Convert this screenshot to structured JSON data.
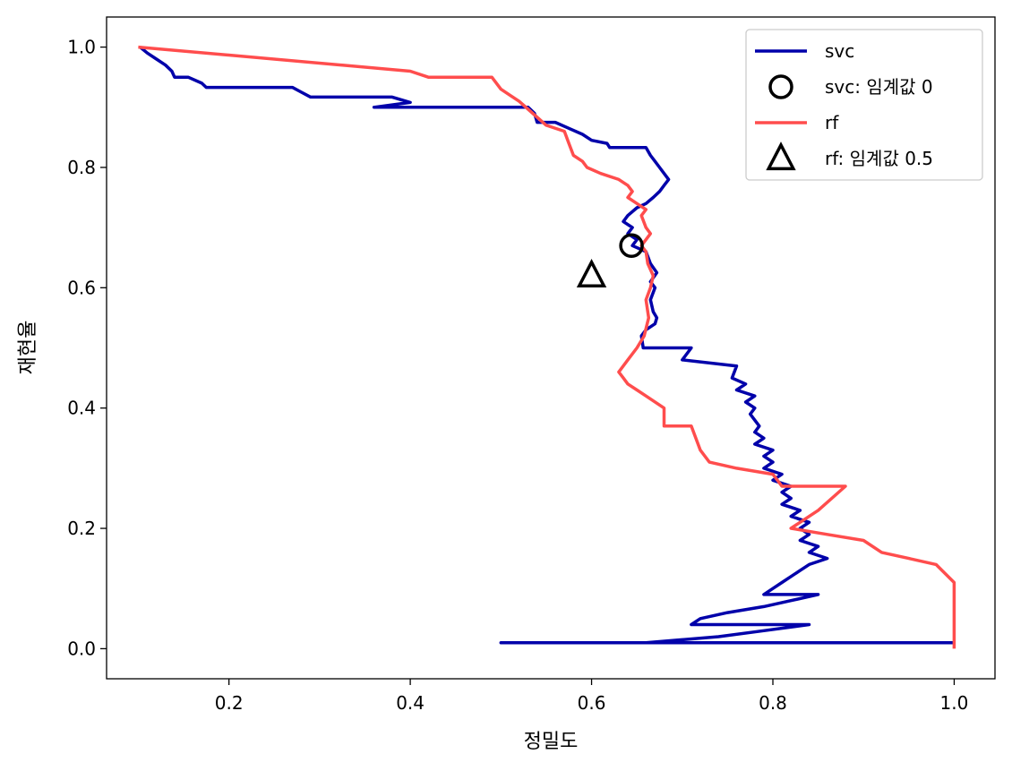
{
  "chart_data": {
    "type": "line",
    "xlabel": "정밀도",
    "ylabel": "재현율",
    "xlim": [
      0.065,
      1.045
    ],
    "ylim": [
      -0.05,
      1.05
    ],
    "xticks": [
      0.2,
      0.4,
      0.6,
      0.8,
      1.0
    ],
    "xtick_labels": [
      "0.2",
      "0.4",
      "0.6",
      "0.8",
      "1.0"
    ],
    "yticks": [
      0.0,
      0.2,
      0.4,
      0.6,
      0.8,
      1.0
    ],
    "ytick_labels": [
      "0.0",
      "0.2",
      "0.4",
      "0.6",
      "0.8",
      "1.0"
    ],
    "grid": false,
    "legend_position": "top-right",
    "series": [
      {
        "name": "svc",
        "kind": "line",
        "color": "#0000aa",
        "points": [
          [
            0.102,
            1.0
          ],
          [
            0.11,
            0.99
          ],
          [
            0.12,
            0.98
          ],
          [
            0.13,
            0.97
          ],
          [
            0.137,
            0.96
          ],
          [
            0.14,
            0.95
          ],
          [
            0.155,
            0.95
          ],
          [
            0.17,
            0.94
          ],
          [
            0.175,
            0.933
          ],
          [
            0.27,
            0.933
          ],
          [
            0.28,
            0.925
          ],
          [
            0.29,
            0.917
          ],
          [
            0.38,
            0.917
          ],
          [
            0.4,
            0.908
          ],
          [
            0.36,
            0.9
          ],
          [
            0.53,
            0.9
          ],
          [
            0.537,
            0.89
          ],
          [
            0.54,
            0.875
          ],
          [
            0.56,
            0.875
          ],
          [
            0.575,
            0.865
          ],
          [
            0.59,
            0.855
          ],
          [
            0.6,
            0.845
          ],
          [
            0.617,
            0.84
          ],
          [
            0.62,
            0.833
          ],
          [
            0.66,
            0.833
          ],
          [
            0.665,
            0.82
          ],
          [
            0.67,
            0.81
          ],
          [
            0.675,
            0.8
          ],
          [
            0.68,
            0.79
          ],
          [
            0.685,
            0.78
          ],
          [
            0.68,
            0.77
          ],
          [
            0.675,
            0.76
          ],
          [
            0.668,
            0.75
          ],
          [
            0.66,
            0.74
          ],
          [
            0.65,
            0.733
          ],
          [
            0.64,
            0.72
          ],
          [
            0.635,
            0.71
          ],
          [
            0.645,
            0.7
          ],
          [
            0.64,
            0.69
          ],
          [
            0.65,
            0.68
          ],
          [
            0.645,
            0.67
          ],
          [
            0.66,
            0.66
          ],
          [
            0.665,
            0.64
          ],
          [
            0.672,
            0.625
          ],
          [
            0.665,
            0.61
          ],
          [
            0.67,
            0.6
          ],
          [
            0.665,
            0.58
          ],
          [
            0.668,
            0.56
          ],
          [
            0.672,
            0.55
          ],
          [
            0.67,
            0.54
          ],
          [
            0.66,
            0.53
          ],
          [
            0.655,
            0.52
          ],
          [
            0.657,
            0.5
          ],
          [
            0.71,
            0.5
          ],
          [
            0.7,
            0.48
          ],
          [
            0.76,
            0.47
          ],
          [
            0.755,
            0.45
          ],
          [
            0.77,
            0.44
          ],
          [
            0.76,
            0.43
          ],
          [
            0.78,
            0.42
          ],
          [
            0.77,
            0.41
          ],
          [
            0.78,
            0.4
          ],
          [
            0.775,
            0.39
          ],
          [
            0.785,
            0.37
          ],
          [
            0.78,
            0.36
          ],
          [
            0.79,
            0.35
          ],
          [
            0.78,
            0.34
          ],
          [
            0.8,
            0.33
          ],
          [
            0.79,
            0.32
          ],
          [
            0.8,
            0.31
          ],
          [
            0.79,
            0.3
          ],
          [
            0.81,
            0.29
          ],
          [
            0.8,
            0.28
          ],
          [
            0.82,
            0.27
          ],
          [
            0.81,
            0.26
          ],
          [
            0.82,
            0.25
          ],
          [
            0.81,
            0.24
          ],
          [
            0.83,
            0.23
          ],
          [
            0.82,
            0.22
          ],
          [
            0.84,
            0.21
          ],
          [
            0.83,
            0.2
          ],
          [
            0.84,
            0.19
          ],
          [
            0.83,
            0.18
          ],
          [
            0.85,
            0.17
          ],
          [
            0.84,
            0.16
          ],
          [
            0.86,
            0.15
          ],
          [
            0.84,
            0.14
          ],
          [
            0.83,
            0.13
          ],
          [
            0.82,
            0.12
          ],
          [
            0.81,
            0.11
          ],
          [
            0.8,
            0.1
          ],
          [
            0.79,
            0.09
          ],
          [
            0.85,
            0.09
          ],
          [
            0.82,
            0.08
          ],
          [
            0.79,
            0.07
          ],
          [
            0.75,
            0.06
          ],
          [
            0.72,
            0.05
          ],
          [
            0.71,
            0.04
          ],
          [
            0.84,
            0.04
          ],
          [
            0.79,
            0.03
          ],
          [
            0.74,
            0.02
          ],
          [
            0.66,
            0.01
          ],
          [
            0.5,
            0.01
          ],
          [
            1.0,
            0.01
          ]
        ]
      },
      {
        "name": "svc: 임계값 0",
        "kind": "marker",
        "marker": "circle",
        "color": "#000000",
        "points": [
          [
            0.644,
            0.67
          ]
        ]
      },
      {
        "name": "rf",
        "kind": "line",
        "color": "#ff4d4d",
        "points": [
          [
            0.1,
            1.0
          ],
          [
            0.4,
            0.96
          ],
          [
            0.42,
            0.95
          ],
          [
            0.49,
            0.95
          ],
          [
            0.5,
            0.93
          ],
          [
            0.51,
            0.92
          ],
          [
            0.52,
            0.91
          ],
          [
            0.535,
            0.89
          ],
          [
            0.55,
            0.87
          ],
          [
            0.57,
            0.86
          ],
          [
            0.575,
            0.84
          ],
          [
            0.58,
            0.82
          ],
          [
            0.59,
            0.81
          ],
          [
            0.595,
            0.8
          ],
          [
            0.61,
            0.79
          ],
          [
            0.63,
            0.78
          ],
          [
            0.64,
            0.77
          ],
          [
            0.645,
            0.76
          ],
          [
            0.64,
            0.75
          ],
          [
            0.65,
            0.74
          ],
          [
            0.66,
            0.73
          ],
          [
            0.655,
            0.72
          ],
          [
            0.66,
            0.7
          ],
          [
            0.665,
            0.69
          ],
          [
            0.66,
            0.68
          ],
          [
            0.655,
            0.67
          ],
          [
            0.66,
            0.66
          ],
          [
            0.662,
            0.64
          ],
          [
            0.668,
            0.62
          ],
          [
            0.665,
            0.6
          ],
          [
            0.66,
            0.58
          ],
          [
            0.663,
            0.55
          ],
          [
            0.658,
            0.52
          ],
          [
            0.65,
            0.5
          ],
          [
            0.64,
            0.48
          ],
          [
            0.63,
            0.46
          ],
          [
            0.635,
            0.45
          ],
          [
            0.64,
            0.44
          ],
          [
            0.65,
            0.43
          ],
          [
            0.66,
            0.42
          ],
          [
            0.68,
            0.4
          ],
          [
            0.68,
            0.37
          ],
          [
            0.71,
            0.37
          ],
          [
            0.72,
            0.33
          ],
          [
            0.73,
            0.31
          ],
          [
            0.76,
            0.3
          ],
          [
            0.8,
            0.29
          ],
          [
            0.81,
            0.27
          ],
          [
            0.88,
            0.27
          ],
          [
            0.85,
            0.23
          ],
          [
            0.82,
            0.2
          ],
          [
            0.86,
            0.19
          ],
          [
            0.9,
            0.18
          ],
          [
            0.92,
            0.16
          ],
          [
            0.95,
            0.15
          ],
          [
            0.98,
            0.14
          ],
          [
            1.0,
            0.11
          ],
          [
            1.0,
            0.0
          ]
        ]
      },
      {
        "name": "rf: 임계값 0.5",
        "kind": "marker",
        "marker": "triangle",
        "color": "#000000",
        "points": [
          [
            0.6,
            0.62
          ]
        ]
      }
    ]
  }
}
